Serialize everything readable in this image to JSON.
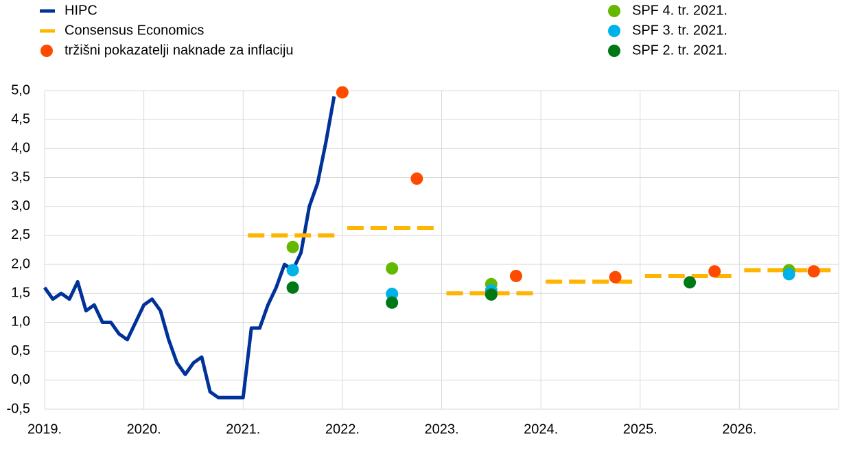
{
  "chart_data": {
    "type": "line",
    "xlim": [
      2019,
      2027
    ],
    "ylim": [
      -0.5,
      5.0
    ],
    "xticks": [
      {
        "value": 2019,
        "label": "2019."
      },
      {
        "value": 2020,
        "label": "2020."
      },
      {
        "value": 2021,
        "label": "2021."
      },
      {
        "value": 2022,
        "label": "2022."
      },
      {
        "value": 2023,
        "label": "2023."
      },
      {
        "value": 2024,
        "label": "2024."
      },
      {
        "value": 2025,
        "label": "2025."
      },
      {
        "value": 2026,
        "label": "2026."
      }
    ],
    "yticks": [
      {
        "value": 5.0,
        "label": "5,0"
      },
      {
        "value": 4.5,
        "label": "4,5"
      },
      {
        "value": 4.0,
        "label": "4,0"
      },
      {
        "value": 3.5,
        "label": "3,5"
      },
      {
        "value": 3.0,
        "label": "3,0"
      },
      {
        "value": 2.5,
        "label": "2,5"
      },
      {
        "value": 2.0,
        "label": "2,0"
      },
      {
        "value": 1.5,
        "label": "1,5"
      },
      {
        "value": 1.0,
        "label": "1,0"
      },
      {
        "value": 0.5,
        "label": "0,5"
      },
      {
        "value": 0.0,
        "label": "0,0"
      },
      {
        "value": -0.5,
        "label": "-0,5"
      }
    ],
    "grid": true,
    "series": [
      {
        "name": "HIPC",
        "style": "line",
        "color": "#003299",
        "x": [
          2019,
          2019.083,
          2019.167,
          2019.25,
          2019.333,
          2019.417,
          2019.5,
          2019.583,
          2019.667,
          2019.75,
          2019.833,
          2019.917,
          2020,
          2020.083,
          2020.167,
          2020.25,
          2020.333,
          2020.417,
          2020.5,
          2020.583,
          2020.667,
          2020.75,
          2020.833,
          2020.917,
          2021,
          2021.083,
          2021.167,
          2021.25,
          2021.333,
          2021.417,
          2021.5,
          2021.583,
          2021.667,
          2021.75,
          2021.833,
          2021.917
        ],
        "values": [
          1.6,
          1.4,
          1.5,
          1.4,
          1.7,
          1.2,
          1.3,
          1.0,
          1.0,
          0.8,
          0.7,
          1.0,
          1.3,
          1.4,
          1.2,
          0.7,
          0.3,
          0.1,
          0.3,
          0.4,
          -0.2,
          -0.3,
          -0.3,
          -0.3,
          -0.3,
          0.9,
          0.9,
          1.3,
          1.6,
          2.0,
          1.9,
          2.2,
          3.0,
          3.4,
          4.1,
          4.9
        ]
      },
      {
        "name": "Consensus Economics",
        "style": "dash",
        "color": "#ffb400",
        "x": [
          2021,
          2022,
          2023,
          2024,
          2025,
          2026
        ],
        "values": [
          2.5,
          2.63,
          1.5,
          1.7,
          1.8,
          1.9
        ]
      },
      {
        "name": "tržišni pokazatelji naknade za inflaciju",
        "style": "scatter",
        "color": "#ff4b00",
        "x": [
          2022,
          2022.75,
          2023.75,
          2024.75,
          2025.75,
          2026.75
        ],
        "values": [
          4.97,
          3.48,
          1.8,
          1.78,
          1.88,
          1.88
        ]
      },
      {
        "name": "SPF 4. tr. 2021.",
        "style": "scatter",
        "color": "#65b800",
        "x": [
          2021.5,
          2022.5,
          2023.5,
          2026.5
        ],
        "values": [
          2.3,
          1.93,
          1.66,
          1.9
        ]
      },
      {
        "name": "SPF 3. tr. 2021.",
        "style": "scatter",
        "color": "#00b1ea",
        "x": [
          2021.5,
          2022.5,
          2023.5,
          2026.5
        ],
        "values": [
          1.9,
          1.49,
          1.55,
          1.83
        ]
      },
      {
        "name": "SPF 2. tr. 2021.",
        "style": "scatter",
        "color": "#007816",
        "x": [
          2021.5,
          2022.5,
          2023.5,
          2025.5
        ],
        "values": [
          1.6,
          1.34,
          1.48,
          1.69
        ]
      }
    ]
  }
}
